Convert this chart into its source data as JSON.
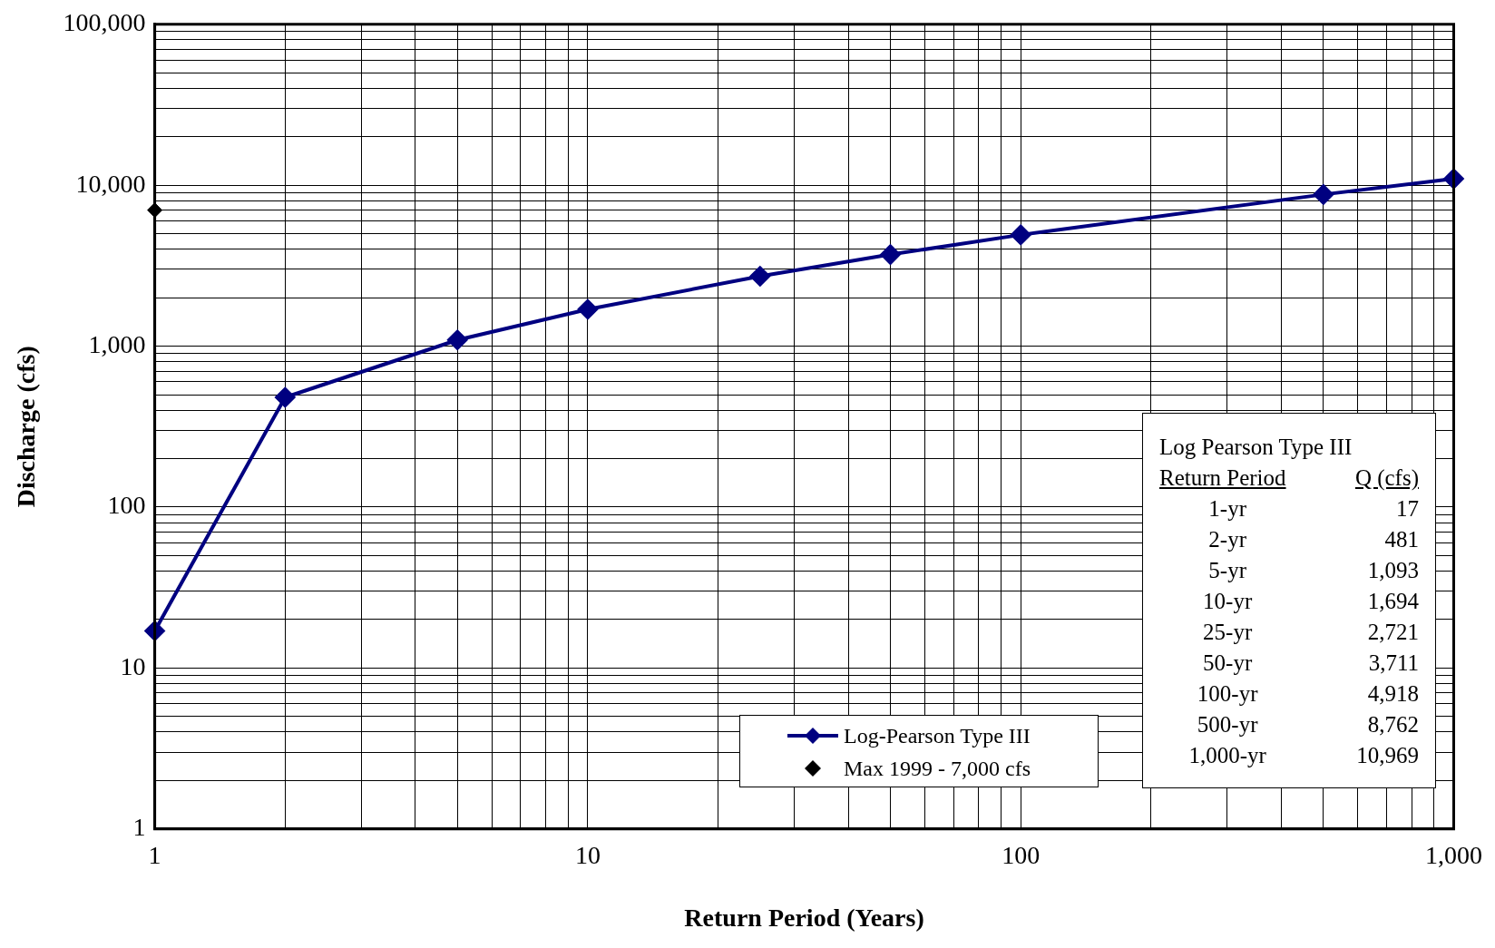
{
  "chart_data": {
    "type": "line",
    "xlabel": "Return Period (Years)",
    "ylabel": "Discharge (cfs)",
    "log": "xy",
    "xlim": [
      1,
      1000
    ],
    "ylim": [
      1,
      100000
    ],
    "xticks": [
      {
        "value": 1,
        "label": "1"
      },
      {
        "value": 2,
        "label": null
      },
      {
        "value": 3,
        "label": null
      },
      {
        "value": 4,
        "label": null
      },
      {
        "value": 5,
        "label": null
      },
      {
        "value": 6,
        "label": null
      },
      {
        "value": 7,
        "label": null
      },
      {
        "value": 8,
        "label": null
      },
      {
        "value": 9,
        "label": null
      },
      {
        "value": 10,
        "label": "10"
      },
      {
        "value": 20,
        "label": null
      },
      {
        "value": 30,
        "label": null
      },
      {
        "value": 40,
        "label": null
      },
      {
        "value": 50,
        "label": null
      },
      {
        "value": 60,
        "label": null
      },
      {
        "value": 70,
        "label": null
      },
      {
        "value": 80,
        "label": null
      },
      {
        "value": 90,
        "label": null
      },
      {
        "value": 100,
        "label": "100"
      },
      {
        "value": 200,
        "label": null
      },
      {
        "value": 300,
        "label": null
      },
      {
        "value": 400,
        "label": null
      },
      {
        "value": 500,
        "label": null
      },
      {
        "value": 600,
        "label": null
      },
      {
        "value": 700,
        "label": null
      },
      {
        "value": 800,
        "label": null
      },
      {
        "value": 900,
        "label": null
      },
      {
        "value": 1000,
        "label": "1,000"
      }
    ],
    "yticks": [
      {
        "value": 1,
        "label": "1"
      },
      {
        "value": 2,
        "label": null
      },
      {
        "value": 3,
        "label": null
      },
      {
        "value": 4,
        "label": null
      },
      {
        "value": 5,
        "label": null
      },
      {
        "value": 6,
        "label": null
      },
      {
        "value": 7,
        "label": null
      },
      {
        "value": 8,
        "label": null
      },
      {
        "value": 9,
        "label": null
      },
      {
        "value": 10,
        "label": "10"
      },
      {
        "value": 20,
        "label": null
      },
      {
        "value": 30,
        "label": null
      },
      {
        "value": 40,
        "label": null
      },
      {
        "value": 50,
        "label": null
      },
      {
        "value": 60,
        "label": null
      },
      {
        "value": 70,
        "label": null
      },
      {
        "value": 80,
        "label": null
      },
      {
        "value": 90,
        "label": null
      },
      {
        "value": 100,
        "label": "100"
      },
      {
        "value": 200,
        "label": null
      },
      {
        "value": 300,
        "label": null
      },
      {
        "value": 400,
        "label": null
      },
      {
        "value": 500,
        "label": null
      },
      {
        "value": 600,
        "label": null
      },
      {
        "value": 700,
        "label": null
      },
      {
        "value": 800,
        "label": null
      },
      {
        "value": 900,
        "label": null
      },
      {
        "value": 1000,
        "label": "1,000"
      },
      {
        "value": 2000,
        "label": null
      },
      {
        "value": 3000,
        "label": null
      },
      {
        "value": 4000,
        "label": null
      },
      {
        "value": 5000,
        "label": null
      },
      {
        "value": 6000,
        "label": null
      },
      {
        "value": 7000,
        "label": null
      },
      {
        "value": 8000,
        "label": null
      },
      {
        "value": 9000,
        "label": null
      },
      {
        "value": 10000,
        "label": "10,000"
      },
      {
        "value": 20000,
        "label": null
      },
      {
        "value": 30000,
        "label": null
      },
      {
        "value": 40000,
        "label": null
      },
      {
        "value": 50000,
        "label": null
      },
      {
        "value": 60000,
        "label": null
      },
      {
        "value": 70000,
        "label": null
      },
      {
        "value": 80000,
        "label": null
      },
      {
        "value": 90000,
        "label": null
      },
      {
        "value": 100000,
        "label": "100,000"
      }
    ],
    "grid": true,
    "legend": "bottom",
    "marker": "diamond",
    "line_style": "solid",
    "series": [
      {
        "name": "Log-Pearson Type III",
        "color": "#000080",
        "x": [
          1,
          2,
          5,
          10,
          25,
          50,
          100,
          500,
          1000
        ],
        "values": [
          17,
          481,
          1093,
          1694,
          2721,
          3711,
          4918,
          8762,
          10969
        ]
      },
      {
        "name": "Max 1999 - 7,000 cfs",
        "type": "scatter",
        "color": "#000000",
        "x": [
          1
        ],
        "values": [
          7000
        ]
      }
    ],
    "annotations": [
      "Log Pearson Type III",
      "Return Period",
      "Q (cfs)",
      "1-yr",
      "17",
      "2-yr",
      "481",
      "5-yr",
      "1,093",
      "10-yr",
      "1,694",
      "25-yr",
      "2,721",
      "50-yr",
      "3,711",
      "100-yr",
      "4,918",
      "500-yr",
      "8,762",
      "1,000-yr",
      "10,969"
    ]
  }
}
